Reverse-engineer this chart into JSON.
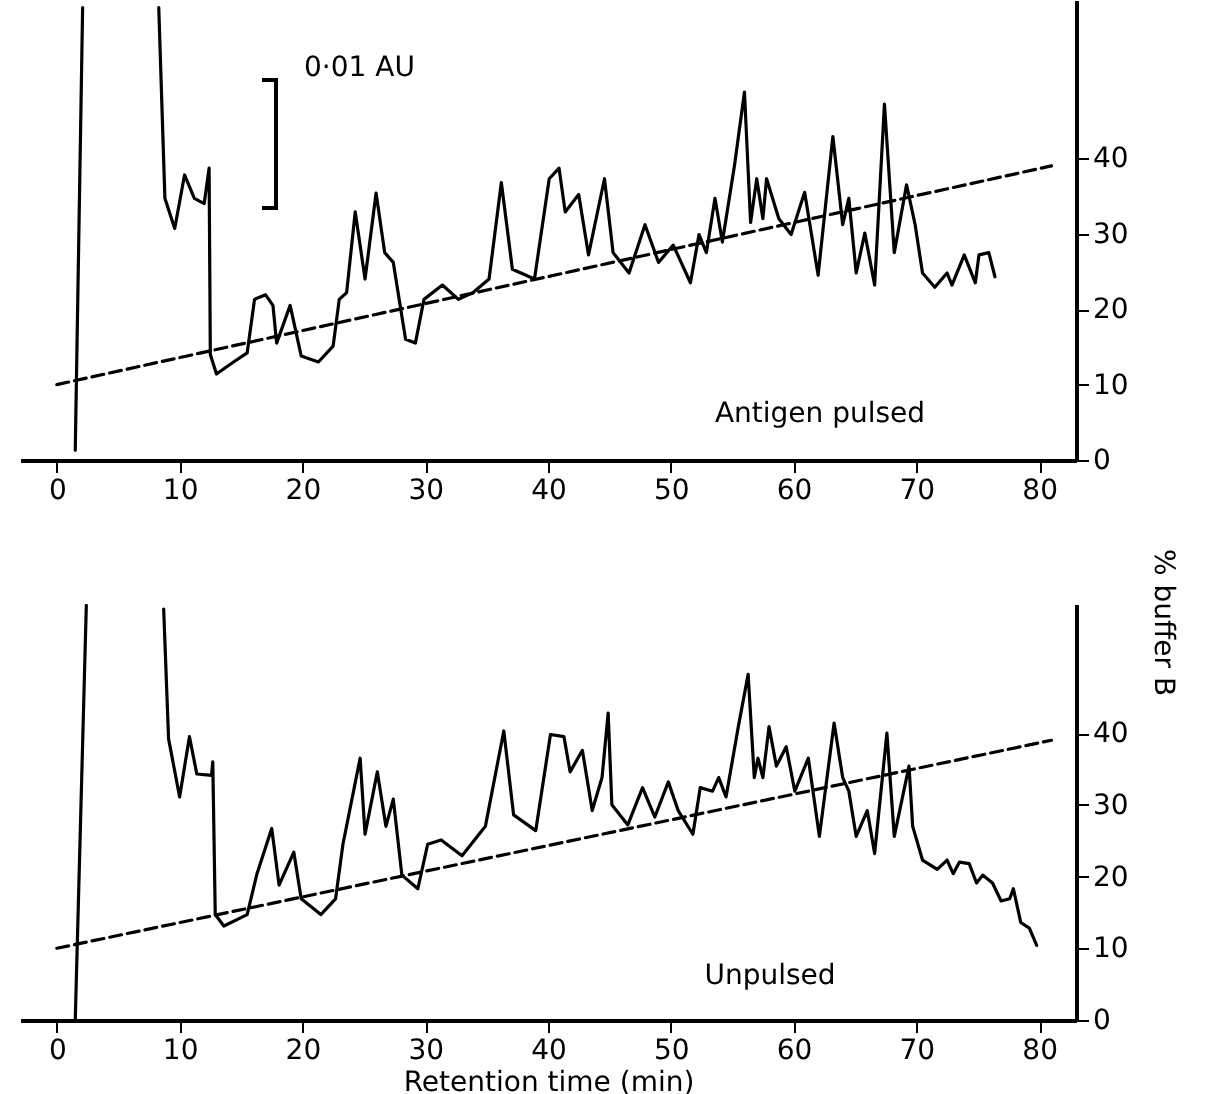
{
  "chart_data": [
    {
      "type": "line",
      "xlim": [
        -3,
        83
      ],
      "xticks": [
        0,
        10,
        20,
        30,
        40,
        50,
        60,
        70,
        80
      ],
      "ylim": [
        0,
        61
      ],
      "yticks": [
        0,
        10,
        20,
        30,
        40
      ],
      "marker": "none",
      "line_style": "solid",
      "annotations": [
        "0·01 AU",
        "Antigen pulsed"
      ],
      "series": [
        {
          "color": "#000000",
          "x": [
            1.5,
            2.1,
            5,
            8.3,
            8.8,
            9.6,
            10.4,
            11.2,
            12,
            12.4,
            12.5,
            13,
            14.3,
            15.5,
            16.1,
            17,
            17.6,
            17.9,
            19,
            19.9,
            21.3,
            22.5,
            23,
            23.6,
            24.3,
            25.1,
            26,
            26.7,
            27.4,
            28.4,
            29.2,
            29.9,
            31.4,
            32.7,
            33.9,
            35.2,
            36.2,
            37.1,
            38.9,
            40.1,
            40.9,
            41.4,
            42.5,
            43.3,
            44.6,
            45.3,
            46.6,
            47.9,
            49,
            50.2,
            51.6,
            52.3,
            52.9,
            53.6,
            54.2,
            55.2,
            56,
            56.5,
            57,
            57.5,
            57.8,
            58.8,
            59.8,
            60.9,
            62,
            63.2,
            64,
            64.5,
            65.1,
            65.8,
            66.6,
            67.4,
            68.2,
            69.2,
            69.9,
            70.5,
            71.5,
            72.5,
            72.9,
            73.9,
            74.8,
            75.1,
            75.9,
            76.4
          ],
          "values": [
            1.3,
            60,
            null,
            60,
            34.7,
            30.7,
            37.8,
            34.7,
            34,
            38.7,
            14,
            11.4,
            12.9,
            14.2,
            21.3,
            21.9,
            20.5,
            15.5,
            20.5,
            13.8,
            13,
            15.1,
            21.3,
            22.2,
            32.9,
            24,
            35.4,
            27.5,
            26.2,
            16,
            15.5,
            21.3,
            23.2,
            21.3,
            22.2,
            24,
            36.8,
            25.3,
            24,
            37.3,
            38.7,
            32.9,
            35.2,
            27.2,
            37.3,
            27.5,
            24.8,
            31.2,
            26.2,
            28.5,
            23.5,
            29.9,
            27.5,
            34.7,
            28.9,
            39.2,
            48.8,
            31.5,
            37.3,
            32,
            37.3,
            32,
            29.9,
            35.5,
            24.5,
            42.9,
            31.2,
            34.7,
            24.8,
            30.1,
            23.2,
            47.2,
            27.5,
            36.5,
            31.2,
            24.8,
            22.9,
            24.8,
            23.2,
            27.2,
            23.5,
            27.2,
            27.5,
            24.3
          ]
        },
        {
          "color": "#000000",
          "line_style": "dashed",
          "x": [
            0,
            81
          ],
          "values": [
            10,
            39
          ]
        }
      ]
    },
    {
      "type": "line",
      "xlabel": "Retention time (min)",
      "ylabel": "% buffer B",
      "xlim": [
        -3,
        83
      ],
      "xticks": [
        0,
        10,
        20,
        30,
        40,
        50,
        60,
        70,
        80
      ],
      "ylim": [
        0,
        58
      ],
      "yticks": [
        0,
        10,
        20,
        30,
        40
      ],
      "marker": "none",
      "line_style": "solid",
      "annotations": [
        "Unpulsed"
      ],
      "series": [
        {
          "color": "#000000",
          "x": [
            1.5,
            2.4,
            5,
            8.7,
            9.1,
            10,
            10.8,
            11.4,
            12.6,
            12.7,
            12.9,
            13.6,
            15.5,
            16.3,
            17.5,
            18.1,
            19.3,
            19.9,
            21.5,
            22.7,
            23.3,
            24.7,
            25.1,
            26.1,
            26.8,
            27.4,
            28.1,
            29.4,
            30.2,
            31.3,
            33,
            34.9,
            36.4,
            37.2,
            39,
            40.2,
            41.3,
            41.8,
            42.8,
            43.6,
            44.4,
            44.9,
            45.2,
            46.5,
            47.7,
            48.7,
            49.8,
            50.6,
            51.8,
            52.4,
            53.4,
            53.9,
            54.5,
            55.5,
            56.3,
            56.8,
            57.1,
            57.5,
            58,
            58.6,
            59.4,
            60.1,
            61.2,
            62.1,
            63.3,
            64,
            64.5,
            65.1,
            66,
            66.6,
            67.6,
            68.2,
            69.4,
            69.7,
            70.5,
            71.7,
            72.5,
            73,
            73.5,
            74.3,
            74.9,
            75.4,
            76.2,
            76.9,
            77.6,
            77.9,
            78.5,
            79.2,
            79.8
          ],
          "values": [
            0,
            57.8,
            null,
            57.3,
            39.2,
            31.1,
            39.5,
            34.3,
            34.1,
            36,
            14.7,
            13.1,
            14.7,
            20.4,
            26.7,
            18.8,
            23.4,
            16.9,
            14.7,
            16.9,
            24.5,
            36.5,
            25.9,
            34.6,
            27,
            30.8,
            20.2,
            18.3,
            24.5,
            25.1,
            22.9,
            27,
            40.3,
            28.6,
            26.4,
            39.8,
            39.5,
            34.6,
            37.6,
            29.2,
            33.8,
            42.8,
            30,
            27.2,
            32.4,
            28.3,
            33.2,
            29.2,
            25.9,
            32.4,
            31.9,
            33.8,
            31.1,
            40.9,
            48.2,
            33.8,
            36.5,
            33.8,
            40.9,
            35.4,
            38.1,
            31.9,
            36.5,
            25.6,
            41.4,
            33.8,
            31.9,
            25.6,
            29.2,
            23.2,
            40,
            25.6,
            35.4,
            27,
            22.3,
            21,
            22.3,
            20.4,
            22,
            21.8,
            19.1,
            20.2,
            19.1,
            16.6,
            16.9,
            18.3,
            13.6,
            12.8,
            10.4
          ]
        },
        {
          "color": "#000000",
          "line_style": "dashed",
          "x": [
            0,
            81
          ],
          "values": [
            10,
            39
          ]
        }
      ]
    }
  ]
}
